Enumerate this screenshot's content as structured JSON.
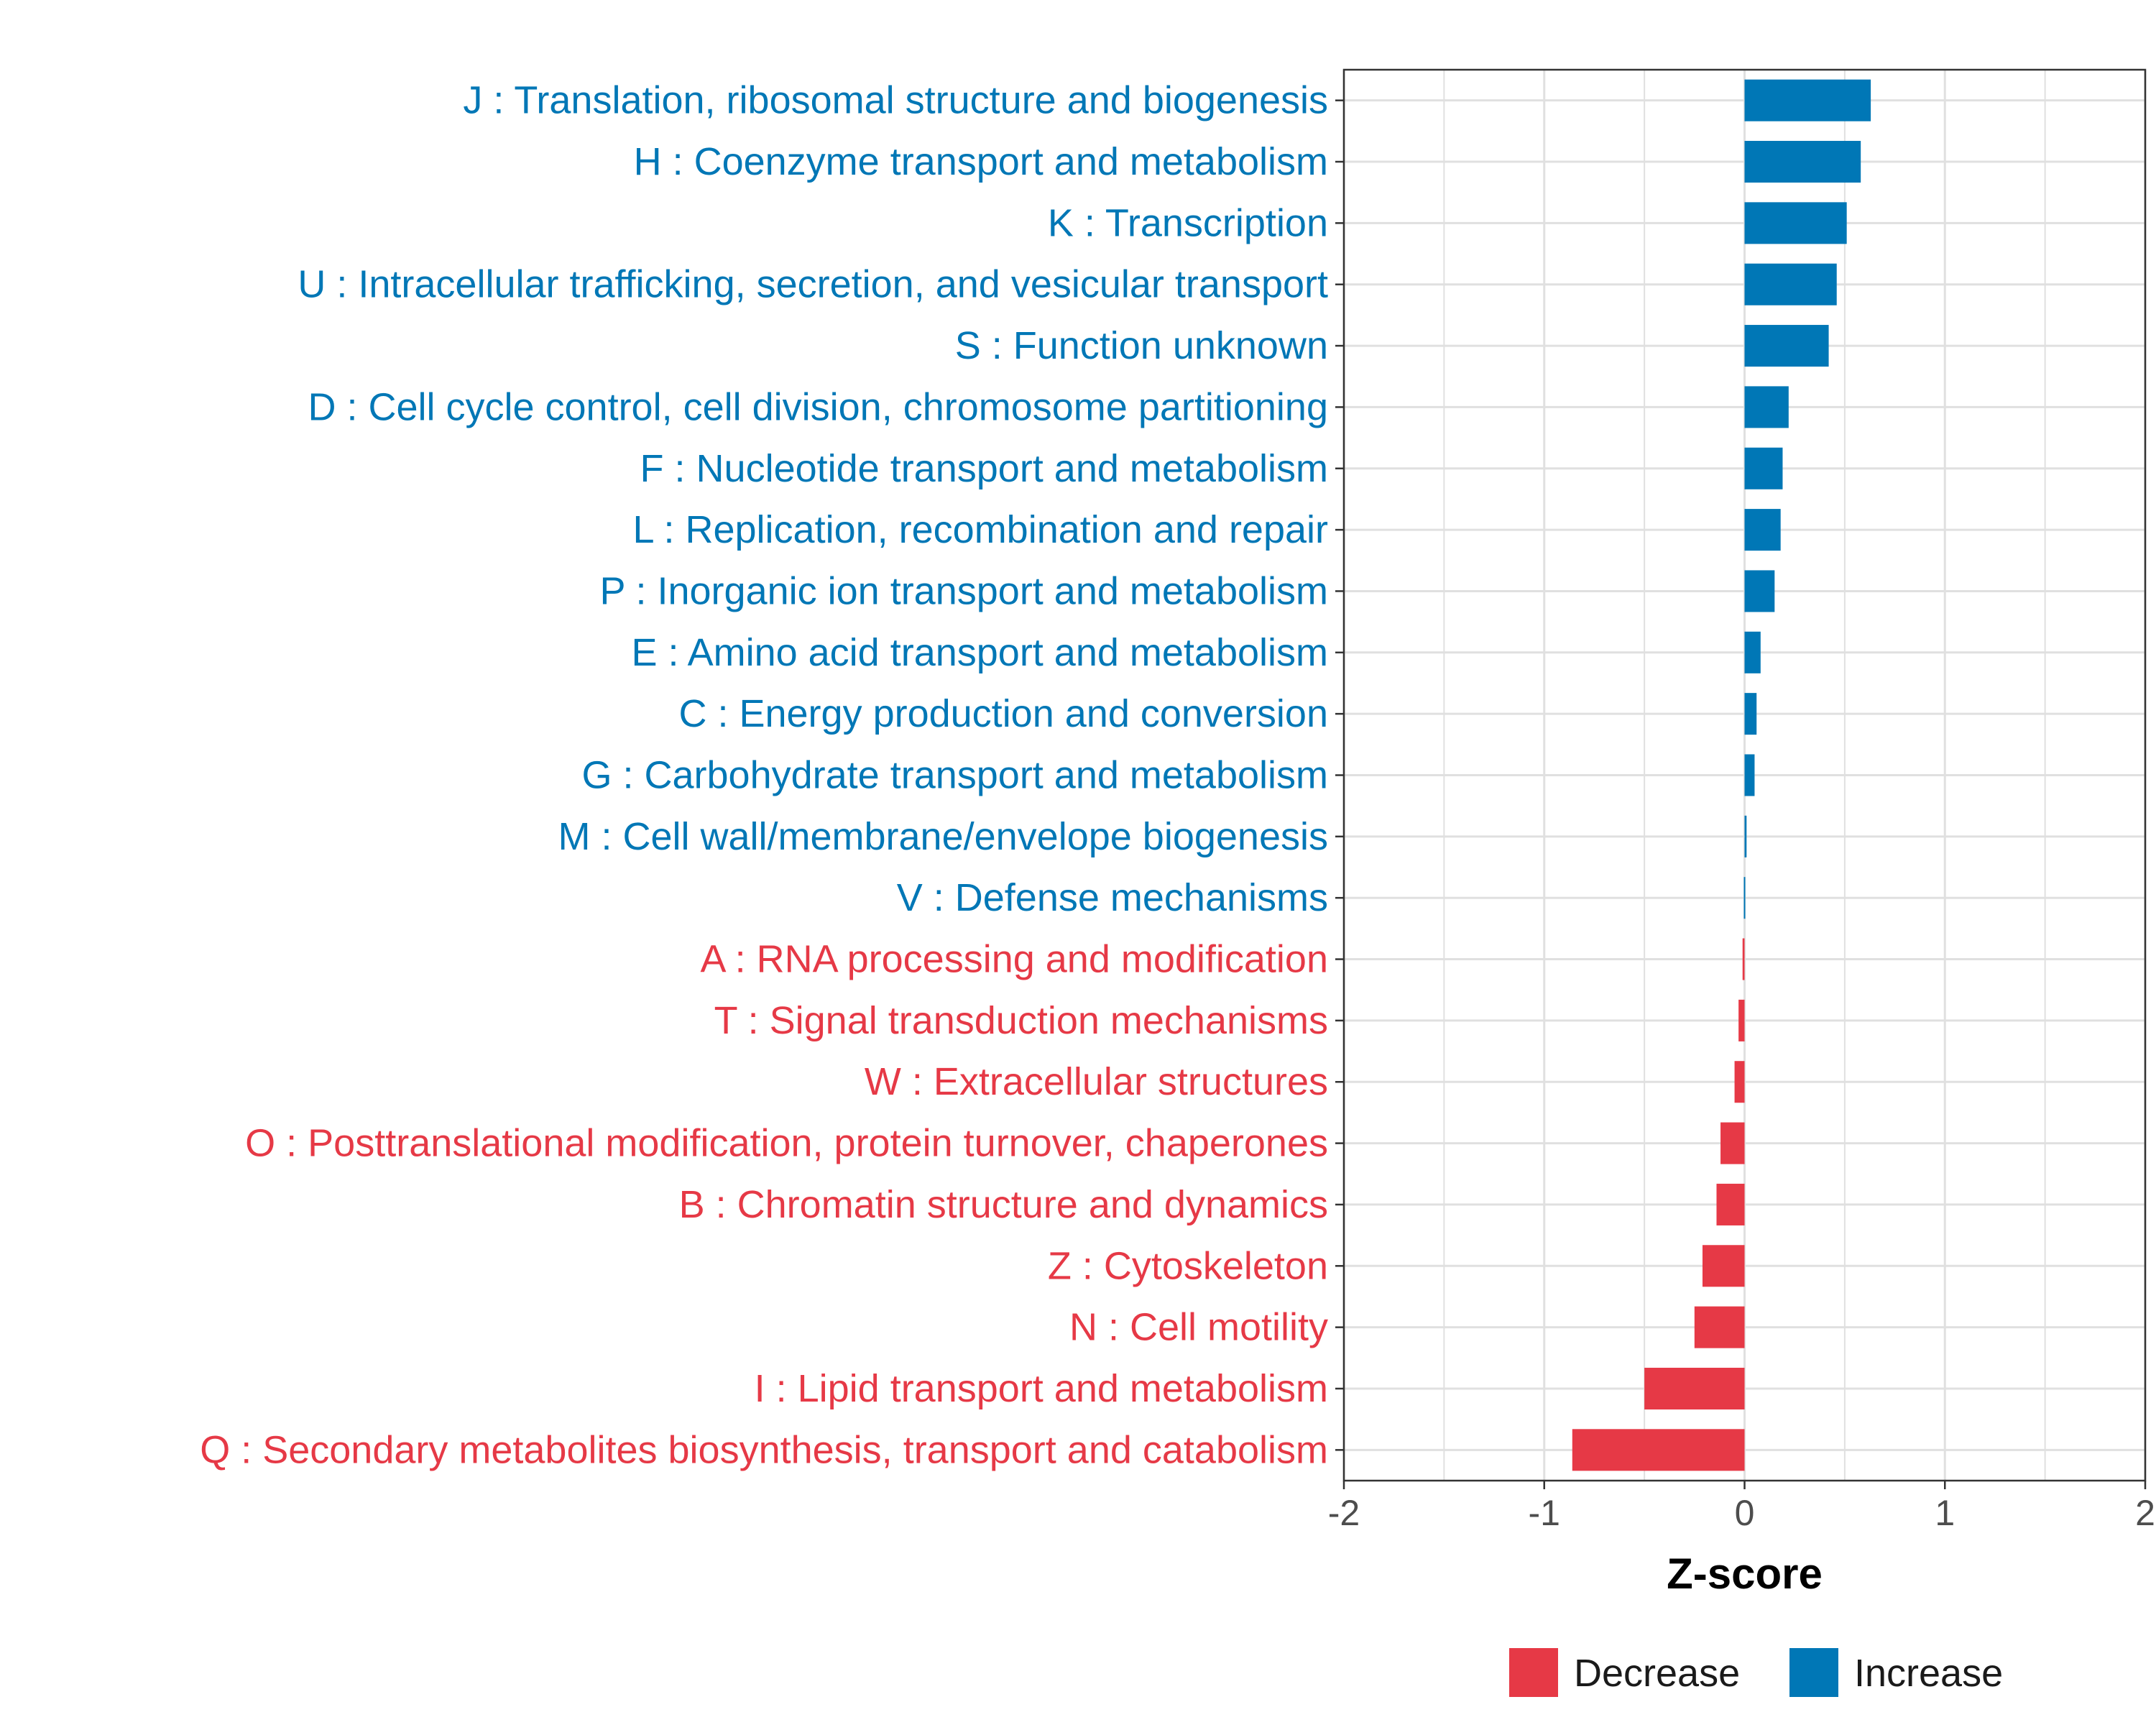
{
  "chart_data": {
    "type": "bar",
    "orientation": "horizontal",
    "xlabel": "Z-score",
    "ylabel": "",
    "xlim": [
      -2,
      2
    ],
    "xticks": [
      -2,
      -1,
      0,
      1,
      2
    ],
    "grid": true,
    "legend_position": "bottom",
    "colors": {
      "Decrease": "#E63946",
      "Increase": "#0077B6"
    },
    "legend": [
      {
        "name": "Decrease",
        "label": "Decrease"
      },
      {
        "name": "Increase",
        "label": "Increase"
      }
    ],
    "categories": [
      "J : Translation, ribosomal structure and biogenesis",
      "H : Coenzyme transport and metabolism",
      "K : Transcription",
      "U : Intracellular trafficking, secretion, and vesicular transport",
      "S : Function unknown",
      "D : Cell cycle control, cell division, chromosome partitioning",
      "F : Nucleotide transport and metabolism",
      "L : Replication, recombination and repair",
      "P : Inorganic ion transport and metabolism",
      "E : Amino acid transport and metabolism",
      "C : Energy production and conversion",
      "G : Carbohydrate transport and metabolism",
      "M : Cell wall/membrane/envelope biogenesis",
      "V : Defense mechanisms",
      "A : RNA processing and modification",
      "T : Signal transduction mechanisms",
      "W : Extracellular structures",
      "O : Posttranslational modification, protein turnover, chaperones",
      "B : Chromatin structure and dynamics",
      "Z : Cytoskeleton",
      "N : Cell motility",
      "I : Lipid transport and metabolism",
      "Q : Secondary metabolites biosynthesis, transport and catabolism"
    ],
    "values": [
      0.63,
      0.58,
      0.51,
      0.46,
      0.42,
      0.22,
      0.19,
      0.18,
      0.15,
      0.08,
      0.06,
      0.05,
      0.01,
      0.005,
      -0.01,
      -0.03,
      -0.05,
      -0.12,
      -0.14,
      -0.21,
      -0.25,
      -0.5,
      -0.86
    ],
    "groups": [
      "Increase",
      "Increase",
      "Increase",
      "Increase",
      "Increase",
      "Increase",
      "Increase",
      "Increase",
      "Increase",
      "Increase",
      "Increase",
      "Increase",
      "Increase",
      "Increase",
      "Decrease",
      "Decrease",
      "Decrease",
      "Decrease",
      "Decrease",
      "Decrease",
      "Decrease",
      "Decrease",
      "Decrease"
    ]
  }
}
